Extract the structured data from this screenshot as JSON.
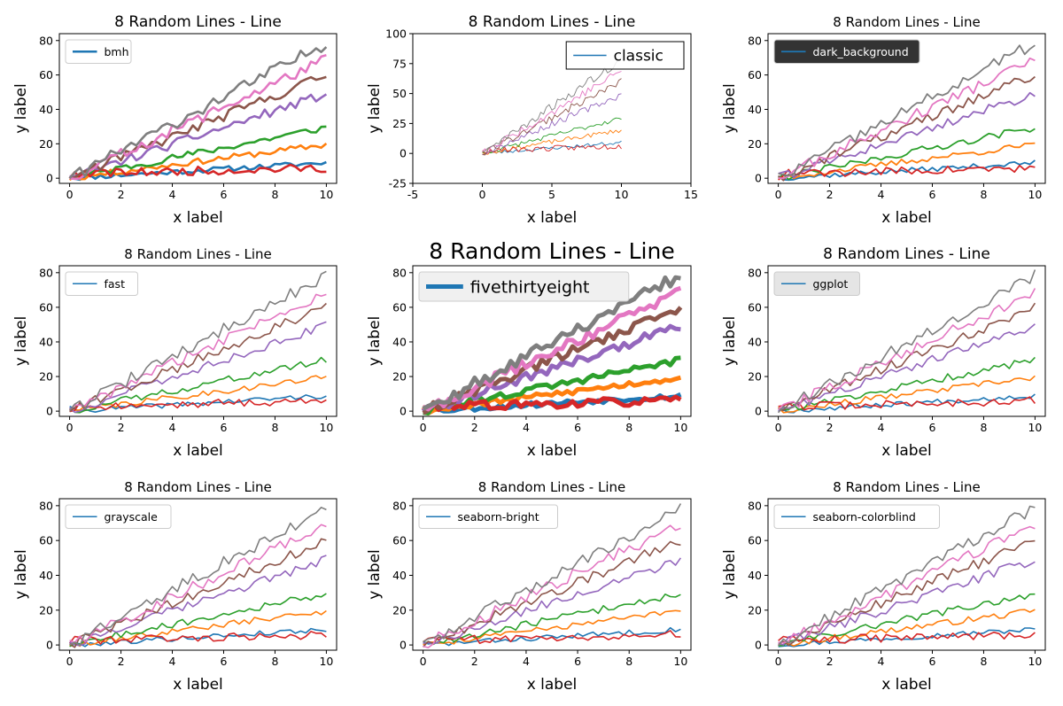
{
  "figure": {
    "background": "#ffffff"
  },
  "chart_data": [
    {
      "type": "line",
      "title": "8 Random Lines - Line",
      "xlabel": "x label",
      "ylabel": "y label",
      "xlim": [
        -0.4,
        10.4
      ],
      "ylim": [
        -3,
        84
      ],
      "xticks": [
        0,
        2,
        4,
        6,
        8,
        10
      ],
      "yticks": [
        0,
        20,
        40,
        60,
        80
      ],
      "legend": {
        "label": "bmh",
        "placement": "upper-left",
        "color": "#1f77b4"
      },
      "line_width": 2.6,
      "grid": false,
      "series_seed": 11
    },
    {
      "type": "line",
      "title": "8 Random Lines - Line",
      "xlabel": "x label",
      "ylabel": "y label",
      "xlim": [
        -5,
        15
      ],
      "ylim": [
        -25,
        100
      ],
      "xticks": [
        -5,
        0,
        5,
        10,
        15
      ],
      "yticks": [
        -25,
        0,
        25,
        50,
        75,
        100
      ],
      "legend": {
        "label": "classic",
        "placement": "upper-right",
        "color": "#1f77b4"
      },
      "line_width": 0.9,
      "grid": false,
      "series_seed": 23
    },
    {
      "type": "line",
      "title": "8 Random Lines - Line",
      "xlabel": "x label",
      "ylabel": "y label",
      "xlim": [
        -0.4,
        10.4
      ],
      "ylim": [
        -3,
        84
      ],
      "xticks": [
        0,
        2,
        4,
        6,
        8,
        10
      ],
      "yticks": [
        0,
        20,
        40,
        60,
        80
      ],
      "legend": {
        "label": "dark_background",
        "placement": "upper-left",
        "color": "#1f77b4",
        "box_color": "#333333",
        "text_color": "#ffffff"
      },
      "line_width": 1.8,
      "grid": false,
      "series_seed": 37
    },
    {
      "type": "line",
      "title": "8 Random Lines - Line",
      "xlabel": "x label",
      "ylabel": "y label",
      "xlim": [
        -0.4,
        10.4
      ],
      "ylim": [
        -3,
        84
      ],
      "xticks": [
        0,
        2,
        4,
        6,
        8,
        10
      ],
      "yticks": [
        0,
        20,
        40,
        60,
        80
      ],
      "legend": {
        "label": "fast",
        "placement": "upper-left",
        "color": "#1f77b4"
      },
      "line_width": 1.6,
      "grid": false,
      "series_seed": 41
    },
    {
      "type": "line",
      "title": "8 Random Lines - Line",
      "xlabel": "x label",
      "ylabel": "y label",
      "xlim": [
        -0.4,
        10.4
      ],
      "ylim": [
        -3,
        84
      ],
      "xticks": [
        0,
        2,
        4,
        6,
        8,
        10
      ],
      "yticks": [
        0,
        20,
        40,
        60,
        80
      ],
      "legend": {
        "label": "fivethirtyeight",
        "placement": "upper-left",
        "color": "#1f77b4",
        "box_color": "#f0f0f0"
      },
      "line_width": 5,
      "grid": false,
      "series_seed": 53
    },
    {
      "type": "line",
      "title": "8 Random Lines - Line",
      "xlabel": "x label",
      "ylabel": "y label",
      "xlim": [
        -0.4,
        10.4
      ],
      "ylim": [
        -3,
        84
      ],
      "xticks": [
        0,
        2,
        4,
        6,
        8,
        10
      ],
      "yticks": [
        0,
        20,
        40,
        60,
        80
      ],
      "legend": {
        "label": "ggplot",
        "placement": "upper-left",
        "color": "#1f77b4",
        "box_color": "#e5e5e5"
      },
      "line_width": 1.6,
      "grid": false,
      "series_seed": 67
    },
    {
      "type": "line",
      "title": "8 Random Lines - Line",
      "xlabel": "x label",
      "ylabel": "y label",
      "xlim": [
        -0.4,
        10.4
      ],
      "ylim": [
        -3,
        84
      ],
      "xticks": [
        0,
        2,
        4,
        6,
        8,
        10
      ],
      "yticks": [
        0,
        20,
        40,
        60,
        80
      ],
      "legend": {
        "label": "grayscale",
        "placement": "upper-left",
        "color": "#1f77b4"
      },
      "line_width": 1.6,
      "grid": false,
      "series_seed": 79
    },
    {
      "type": "line",
      "title": "8 Random Lines - Line",
      "xlabel": "x label",
      "ylabel": "y label",
      "xlim": [
        -0.4,
        10.4
      ],
      "ylim": [
        -3,
        84
      ],
      "xticks": [
        0,
        2,
        4,
        6,
        8,
        10
      ],
      "yticks": [
        0,
        20,
        40,
        60,
        80
      ],
      "legend": {
        "label": "seaborn-bright",
        "placement": "upper-left",
        "color": "#1f77b4"
      },
      "line_width": 1.6,
      "grid": false,
      "series_seed": 83
    },
    {
      "type": "line",
      "title": "8 Random Lines - Line",
      "xlabel": "x label",
      "ylabel": "y label",
      "xlim": [
        -0.4,
        10.4
      ],
      "ylim": [
        -3,
        84
      ],
      "xticks": [
        0,
        2,
        4,
        6,
        8,
        10
      ],
      "yticks": [
        0,
        20,
        40,
        60,
        80
      ],
      "legend": {
        "label": "seaborn-colorblind",
        "placement": "upper-left",
        "color": "#1f77b4"
      },
      "line_width": 1.6,
      "grid": false,
      "series_seed": 97
    }
  ],
  "series_colors": [
    "#1f77b4",
    "#ff7f0e",
    "#2ca02c",
    "#d62728",
    "#9467bd",
    "#8c564b",
    "#e377c2",
    "#7f7f7f"
  ],
  "series_slopes": [
    0.9,
    1.95,
    2.95,
    0.35,
    4.9,
    6.0,
    6.9,
    7.85
  ]
}
